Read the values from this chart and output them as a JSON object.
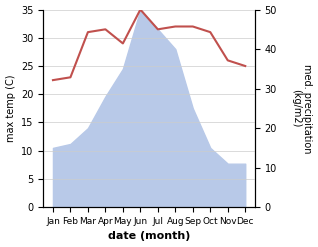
{
  "months": [
    "Jan",
    "Feb",
    "Mar",
    "Apr",
    "May",
    "Jun",
    "Jul",
    "Aug",
    "Sep",
    "Oct",
    "Nov",
    "Dec"
  ],
  "temperature": [
    22.5,
    23.0,
    31.0,
    31.5,
    29.0,
    35.0,
    31.5,
    32.0,
    32.0,
    31.0,
    26.0,
    25.0
  ],
  "precipitation": [
    15,
    16,
    20,
    28,
    35,
    50,
    45,
    40,
    25,
    15,
    11,
    11
  ],
  "temp_color": "#c0504d",
  "precip_color": "#b8c9e8",
  "ylabel_left": "max temp (C)",
  "ylabel_right": "med. precipitation\n(kg/m2)",
  "xlabel": "date (month)",
  "ylim_left": [
    0,
    35
  ],
  "ylim_right": [
    0,
    50
  ],
  "yticks_left": [
    0,
    5,
    10,
    15,
    20,
    25,
    30,
    35
  ],
  "yticks_right": [
    0,
    10,
    20,
    30,
    40,
    50
  ],
  "background_color": "#ffffff",
  "grid_color": "#cccccc"
}
